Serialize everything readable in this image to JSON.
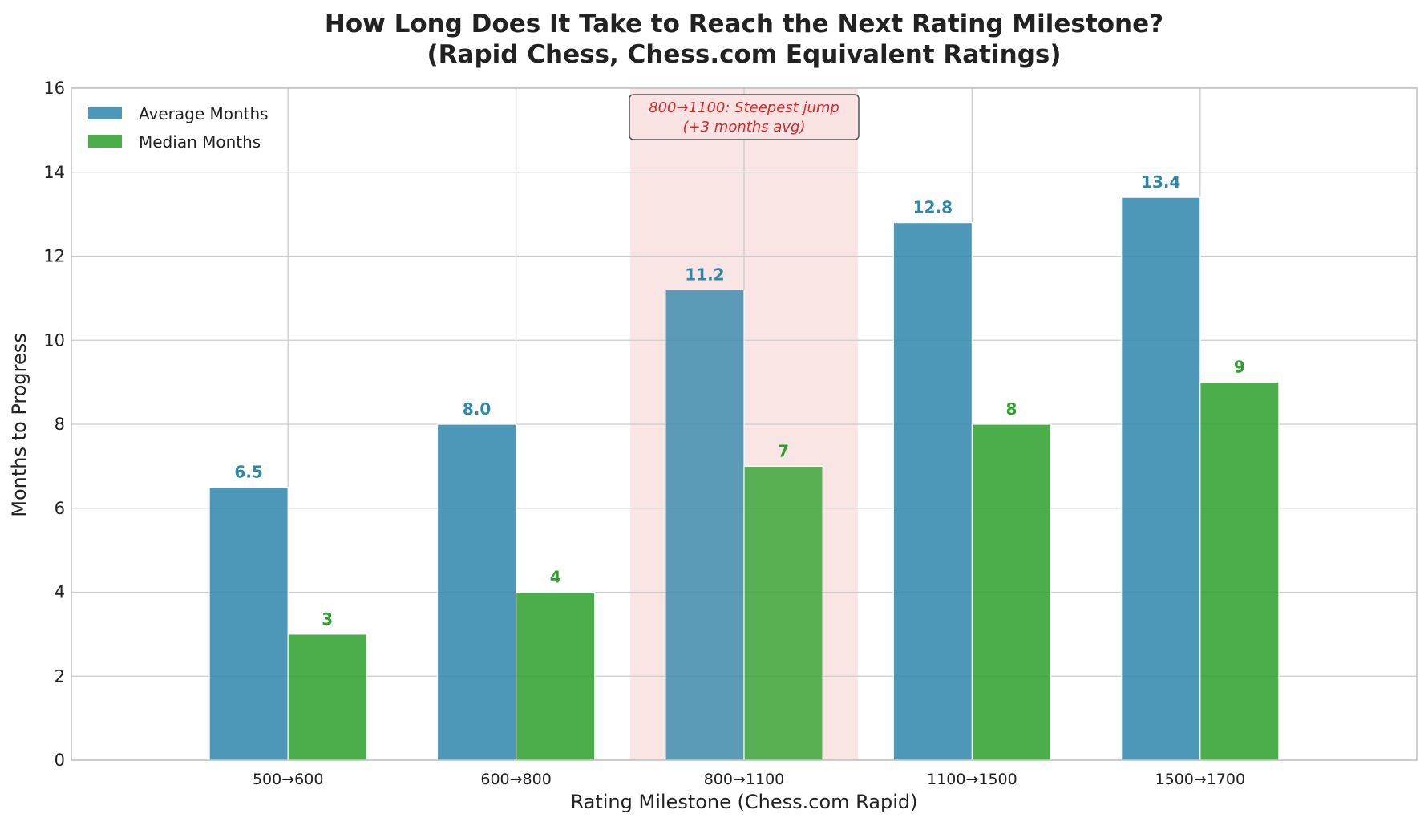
{
  "chart_data": {
    "type": "bar",
    "title_line1": "How Long Does It Take to Reach the Next Rating Milestone?",
    "title_line2": "(Rapid Chess, Chess.com Equivalent Ratings)",
    "xlabel": "Rating Milestone (Chess.com Rapid)",
    "ylabel": "Months to Progress",
    "ylim": [
      0,
      16
    ],
    "yticks": [
      "0",
      "2",
      "4",
      "6",
      "8",
      "10",
      "12",
      "14",
      "16"
    ],
    "grid": true,
    "legend_position": "top-left",
    "categories": [
      "500→600",
      "600→800",
      "800→1100",
      "1100→1500",
      "1500→1700"
    ],
    "series": [
      {
        "name": "Average Months",
        "color": "#2e86ab",
        "values": [
          6.5,
          8.0,
          11.2,
          12.8,
          13.4
        ],
        "labels": [
          "6.5",
          "8.0",
          "11.2",
          "12.8",
          "13.4"
        ]
      },
      {
        "name": "Median Months",
        "color": "#2ca02c",
        "values": [
          3,
          4,
          7,
          8,
          9
        ],
        "labels": [
          "3",
          "4",
          "7",
          "8",
          "9"
        ]
      }
    ],
    "highlight": {
      "category_index": 2,
      "color": "#f5c6c6",
      "annotation_line1": "800→1100: Steepest jump",
      "annotation_line2": "(+3 months avg)",
      "annotation_color": "#d62728"
    }
  }
}
